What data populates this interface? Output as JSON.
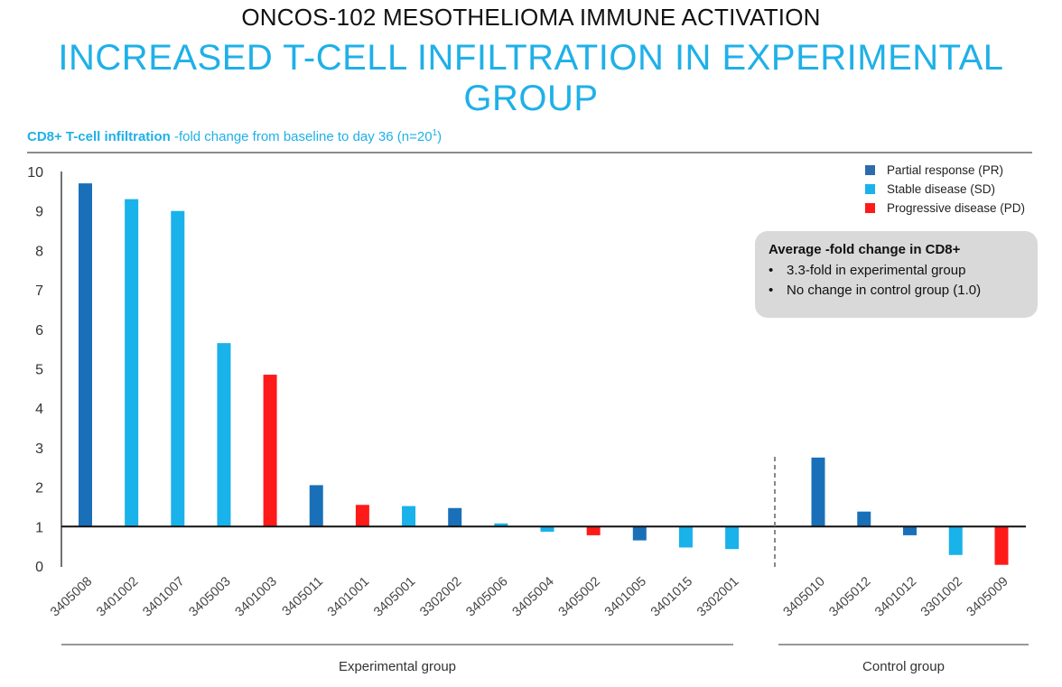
{
  "header": {
    "supertitle": "ONCOS-102 MESOTHELIOMA IMMUNE ACTIVATION",
    "title": "INCREASED T-CELL INFILTRATION IN EXPERIMENTAL GROUP",
    "subtitle_bold": "CD8+ T-cell infiltration",
    "subtitle_rest": " -fold change from baseline to day 36 (n=20",
    "subtitle_sup": "1",
    "subtitle_close": ")"
  },
  "legend": [
    {
      "label": "Partial response (PR)",
      "color": "#2e6bad"
    },
    {
      "label": "Stable disease (SD)",
      "color": "#19b2ea"
    },
    {
      "label": "Progressive disease (PD)",
      "color": "#ff1a1a"
    }
  ],
  "callout": {
    "title": "Average -fold change in CD8+",
    "items": [
      "3.3-fold in experimental group",
      "No change in control group (1.0)"
    ]
  },
  "colors": {
    "PR": "#1a70b8",
    "SD": "#19b2ea",
    "PD": "#ff1a1a"
  },
  "chart_data": {
    "type": "bar",
    "title": "",
    "xlabel": "",
    "ylabel": "",
    "ylim": [
      0,
      10
    ],
    "baseline": 1,
    "yticks": [
      0,
      1,
      2,
      3,
      4,
      5,
      6,
      7,
      8,
      9,
      10
    ],
    "groups": [
      {
        "name": "Experimental group",
        "categories": [
          "3405008",
          "3401002",
          "3401007",
          "3405003",
          "3401003",
          "3405011",
          "3401001",
          "3405001",
          "3302002",
          "3405006",
          "3405004",
          "3405002",
          "3401005",
          "3401015",
          "3302001"
        ],
        "values": [
          9.7,
          9.3,
          9.0,
          5.65,
          4.85,
          2.05,
          1.55,
          1.52,
          1.47,
          1.08,
          0.87,
          0.78,
          0.65,
          0.47,
          0.43
        ],
        "response": [
          "PR",
          "SD",
          "SD",
          "SD",
          "PD",
          "PR",
          "PD",
          "SD",
          "PR",
          "SD",
          "SD",
          "PD",
          "PR",
          "SD",
          "SD"
        ]
      },
      {
        "name": "Control group",
        "categories": [
          "3405010",
          "3405012",
          "3401012",
          "3301002",
          "3405009"
        ],
        "values": [
          2.75,
          1.38,
          0.78,
          0.28,
          0.03
        ],
        "response": [
          "PR",
          "PR",
          "PR",
          "SD",
          "PD"
        ]
      }
    ]
  }
}
